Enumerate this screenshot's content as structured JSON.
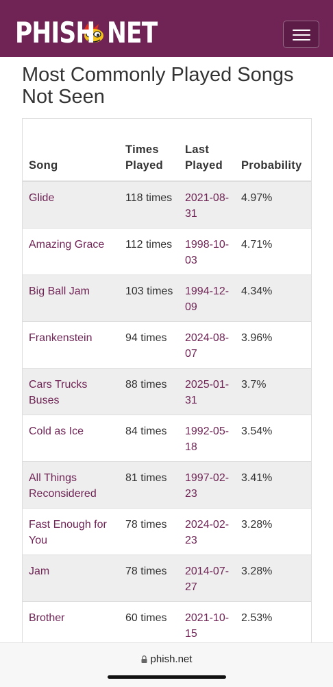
{
  "header": {
    "logo_left": "PHISH",
    "logo_right": "NET",
    "menu_icon": "hamburger-icon",
    "brand_color": "#6f2455"
  },
  "page": {
    "title": "Most Commonly Played Songs Not Seen"
  },
  "table": {
    "columns": {
      "song": "Song",
      "times_played": "Times Played",
      "last_played": "Last Played",
      "probability": "Probability"
    },
    "rows": [
      {
        "song": "Glide",
        "times": "118 times",
        "last": "2021-08-31",
        "prob": "4.97%"
      },
      {
        "song": "Amazing Grace",
        "times": "112 times",
        "last": "1998-10-03",
        "prob": "4.71%"
      },
      {
        "song": "Big Ball Jam",
        "times": "103 times",
        "last": "1994-12-09",
        "prob": "4.34%"
      },
      {
        "song": "Frankenstein",
        "times": "94 times",
        "last": "2024-08-07",
        "prob": "3.96%"
      },
      {
        "song": "Cars Trucks Buses",
        "times": "88 times",
        "last": "2025-01-31",
        "prob": "3.7%"
      },
      {
        "song": "Cold as Ice",
        "times": "84 times",
        "last": "1992-05-18",
        "prob": "3.54%"
      },
      {
        "song": "All Things Reconsidered",
        "times": "81 times",
        "last": "1997-02-23",
        "prob": "3.41%"
      },
      {
        "song": "Fast Enough for You",
        "times": "78 times",
        "last": "2024-02-23",
        "prob": "3.28%"
      },
      {
        "song": "Jam",
        "times": "78 times",
        "last": "2014-07-27",
        "prob": "3.28%"
      },
      {
        "song": "Brother",
        "times": "60 times",
        "last": "2021-10-15",
        "prob": "2.53%"
      }
    ]
  },
  "browser": {
    "url": "phish.net",
    "lock_icon": "lock-icon"
  }
}
